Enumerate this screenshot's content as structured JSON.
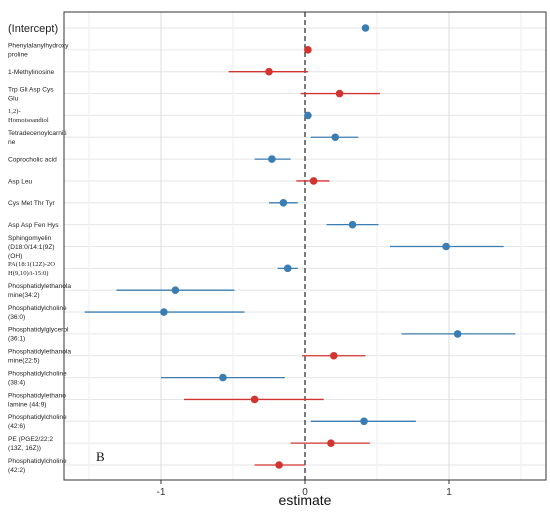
{
  "chart_data": {
    "type": "scatter",
    "subtype": "forest-plot",
    "title": "",
    "panel_label": "B",
    "xlabel": "estimate",
    "ylabel": "",
    "xlim": [
      -1.65,
      1.65
    ],
    "xticks": [
      -1,
      0,
      1
    ],
    "xtick_labels": [
      "-1",
      "0",
      "1"
    ],
    "reference_line_x": 0,
    "grid": true,
    "colors": {
      "positive": "#3a7db3",
      "negative": "#d23430"
    },
    "rows": [
      {
        "label": "(Intercept)",
        "estimate": 0.42,
        "lower": null,
        "upper": null,
        "group": "positive"
      },
      {
        "label": "Phenylalanylhydroxy\nproline",
        "estimate": 0.02,
        "lower": null,
        "upper": null,
        "group": "negative"
      },
      {
        "label": "1-Methylinosine",
        "estimate": -0.25,
        "lower": -0.53,
        "upper": 0.02,
        "group": "negative"
      },
      {
        "label": "Trp Gli Asp Cys\nGlu",
        "estimate": 0.24,
        "lower": -0.03,
        "upper": 0.52,
        "group": "negative"
      },
      {
        "label": "1,2)-\nHomoisoandiol",
        "estimate": 0.02,
        "lower": null,
        "upper": null,
        "group": "positive"
      },
      {
        "label": "Tetradecenoylcarniti\nne",
        "estimate": 0.21,
        "lower": 0.04,
        "upper": 0.37,
        "group": "positive"
      },
      {
        "label": "Coprocholic acid",
        "estimate": -0.23,
        "lower": -0.35,
        "upper": -0.1,
        "group": "positive"
      },
      {
        "label": "Asp Leu",
        "estimate": 0.06,
        "lower": -0.06,
        "upper": 0.17,
        "group": "negative"
      },
      {
        "label": "Cys Met Thr Tyr",
        "estimate": -0.15,
        "lower": -0.25,
        "upper": -0.05,
        "group": "positive"
      },
      {
        "label": "Asp Asp Fen Hys",
        "estimate": 0.33,
        "lower": 0.15,
        "upper": 0.51,
        "group": "positive"
      },
      {
        "label": "Sphingomyelin\n(D18:0/14:1(9Z)\n(OH)",
        "estimate": 0.98,
        "lower": 0.59,
        "upper": 1.38,
        "group": "positive"
      },
      {
        "label": "PA(18:1(12Z)-2O\nH(9,10)/i-15:0)",
        "estimate": -0.12,
        "lower": -0.19,
        "upper": -0.05,
        "group": "positive"
      },
      {
        "label": "Phosphatidylethanola\nmine(34:2)",
        "estimate": -0.9,
        "lower": -1.31,
        "upper": -0.49,
        "group": "positive"
      },
      {
        "label": "Phosphatidylcholine\n(36:0)",
        "estimate": -0.98,
        "lower": -1.53,
        "upper": -0.42,
        "group": "positive"
      },
      {
        "label": "Phosphatidylglycerol\n(36:1)",
        "estimate": 1.06,
        "lower": 0.67,
        "upper": 1.46,
        "group": "positive"
      },
      {
        "label": "Phosphatidylethanola\nmine(22:5)",
        "estimate": 0.2,
        "lower": -0.02,
        "upper": 0.42,
        "group": "negative"
      },
      {
        "label": "Phosphatidylcholine\n(38:4)",
        "estimate": -0.57,
        "lower": -1.0,
        "upper": -0.14,
        "group": "positive"
      },
      {
        "label": "Phosphatidylethano\nlamine (44:9)",
        "estimate": -0.35,
        "lower": -0.84,
        "upper": 0.13,
        "group": "negative"
      },
      {
        "label": "Phosphatidylcholine\n(42:6)",
        "estimate": 0.41,
        "lower": 0.04,
        "upper": 0.77,
        "group": "positive"
      },
      {
        "label": "PE (PGE2/22:2\n(13Z, 16Z))",
        "estimate": 0.18,
        "lower": -0.1,
        "upper": 0.45,
        "group": "negative"
      },
      {
        "label": "Phosphatidylcholine\n(42:2)",
        "estimate": -0.18,
        "lower": -0.35,
        "upper": 0.0,
        "group": "negative"
      }
    ]
  }
}
